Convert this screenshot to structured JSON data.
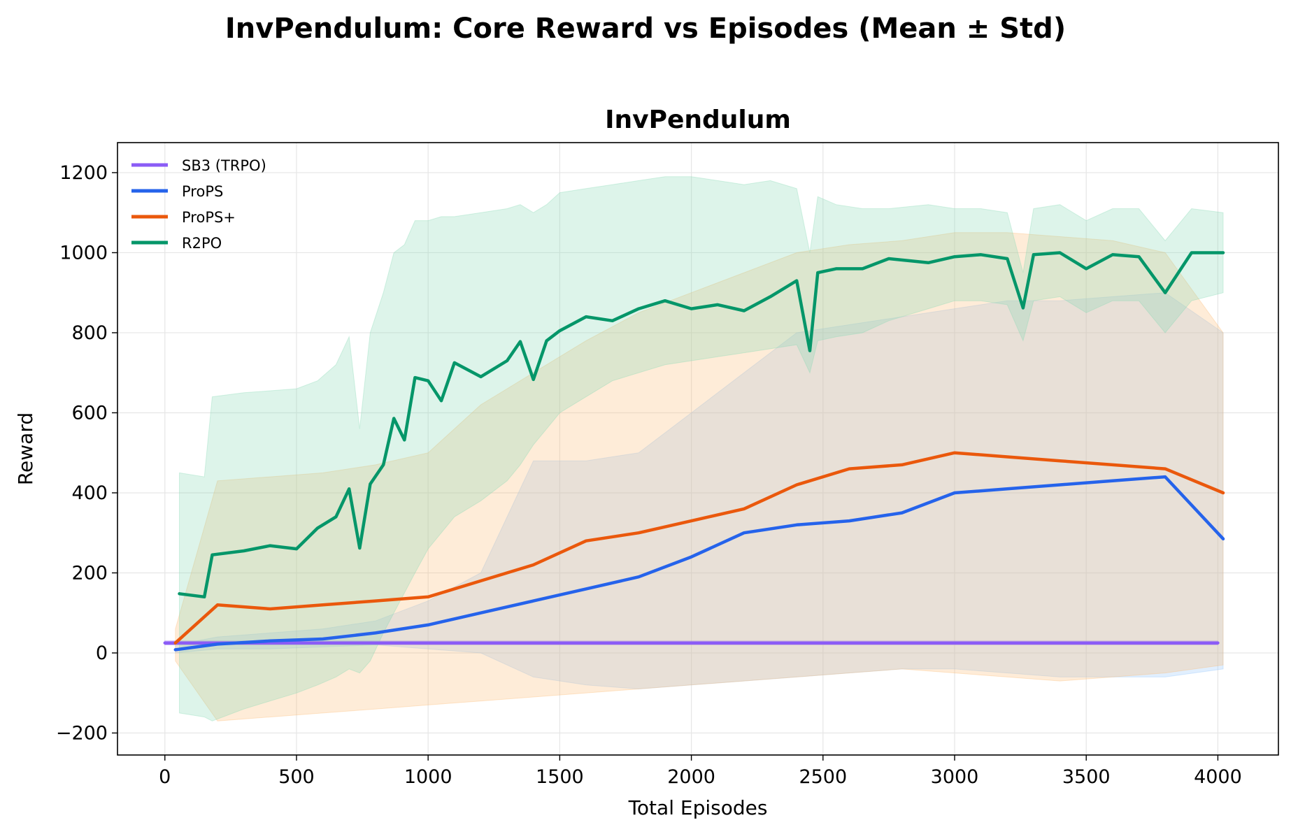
{
  "chart_data": {
    "type": "line",
    "suptitle": "InvPendulum: Core Reward vs Episodes (Mean ± Std)",
    "title": "InvPendulum",
    "xlabel": "Total Episodes",
    "ylabel": "Reward",
    "xlim": [
      -180,
      4230
    ],
    "ylim": [
      -255,
      1275
    ],
    "xticks": [
      0,
      500,
      1000,
      1500,
      2000,
      2500,
      3000,
      3500,
      4000
    ],
    "xtick_labels": [
      "0",
      "500",
      "1000",
      "1500",
      "2000",
      "2500",
      "3000",
      "3500",
      "4000"
    ],
    "yticks": [
      -200,
      0,
      200,
      400,
      600,
      800,
      1000,
      1200
    ],
    "ytick_labels": [
      "−200",
      "0",
      "200",
      "400",
      "600",
      "800",
      "1000",
      "1200"
    ],
    "grid": true,
    "legend_position": "top-left",
    "series": [
      {
        "name": "SB3 (TRPO)",
        "color": "#8b5cf6",
        "band_color": "#8b5cf6",
        "x": [
          0,
          500,
          1000,
          1500,
          2000,
          2500,
          3000,
          3500,
          4000
        ],
        "mean": [
          25,
          25,
          25,
          25,
          25,
          25,
          25,
          25,
          25
        ],
        "lower": [
          20,
          20,
          20,
          20,
          20,
          20,
          20,
          20,
          20
        ],
        "upper": [
          30,
          30,
          30,
          30,
          30,
          30,
          30,
          30,
          30
        ]
      },
      {
        "name": "ProPS",
        "color": "#2563eb",
        "band_color": "#93c5fd",
        "x": [
          40,
          200,
          400,
          600,
          800,
          1000,
          1200,
          1400,
          1600,
          1800,
          2000,
          2200,
          2400,
          2600,
          2800,
          3000,
          3200,
          3400,
          3600,
          3800,
          4020
        ],
        "mean": [
          8,
          22,
          30,
          35,
          50,
          70,
          100,
          130,
          160,
          190,
          240,
          300,
          320,
          330,
          350,
          400,
          410,
          420,
          430,
          440,
          285
        ],
        "lower": [
          0,
          10,
          10,
          15,
          20,
          10,
          0,
          -60,
          -80,
          -90,
          -80,
          -70,
          -60,
          -50,
          -40,
          -40,
          -50,
          -60,
          -60,
          -60,
          -40
        ],
        "upper": [
          20,
          40,
          50,
          60,
          80,
          130,
          200,
          480,
          480,
          500,
          600,
          700,
          800,
          820,
          840,
          860,
          880,
          880,
          890,
          900,
          800
        ]
      },
      {
        "name": "ProPS+",
        "color": "#ea580c",
        "band_color": "#fdba74",
        "x": [
          40,
          200,
          400,
          600,
          800,
          1000,
          1200,
          1400,
          1600,
          1800,
          2000,
          2200,
          2400,
          2600,
          2800,
          3000,
          3200,
          3400,
          3600,
          3800,
          4020
        ],
        "mean": [
          25,
          120,
          110,
          120,
          130,
          140,
          180,
          220,
          280,
          300,
          330,
          360,
          420,
          460,
          470,
          500,
          490,
          480,
          470,
          460,
          400
        ],
        "lower": [
          -20,
          -170,
          -160,
          -150,
          -140,
          -130,
          -120,
          -110,
          -100,
          -90,
          -80,
          -70,
          -60,
          -50,
          -40,
          -50,
          -60,
          -70,
          -60,
          -50,
          -30
        ],
        "upper": [
          60,
          430,
          440,
          450,
          470,
          500,
          620,
          700,
          780,
          850,
          900,
          950,
          1000,
          1020,
          1030,
          1050,
          1050,
          1040,
          1030,
          1000,
          800
        ]
      },
      {
        "name": "R2PO",
        "color": "#059669",
        "band_color": "#86d9b4",
        "x": [
          55,
          150,
          180,
          300,
          400,
          500,
          580,
          650,
          700,
          740,
          780,
          830,
          870,
          910,
          950,
          1000,
          1050,
          1100,
          1200,
          1300,
          1350,
          1400,
          1450,
          1500,
          1600,
          1700,
          1800,
          1900,
          2000,
          2100,
          2200,
          2300,
          2400,
          2450,
          2480,
          2550,
          2650,
          2750,
          2900,
          3000,
          3100,
          3200,
          3260,
          3300,
          3400,
          3500,
          3600,
          3700,
          3800,
          3900,
          4020
        ],
        "mean": [
          148,
          140,
          245,
          255,
          268,
          260,
          312,
          340,
          410,
          262,
          422,
          470,
          586,
          532,
          688,
          680,
          630,
          725,
          690,
          730,
          778,
          683,
          780,
          805,
          840,
          830,
          860,
          880,
          860,
          870,
          855,
          890,
          930,
          755,
          950,
          960,
          960,
          985,
          975,
          990,
          995,
          985,
          862,
          995,
          1000,
          960,
          995,
          990,
          900,
          1000,
          1000
        ],
        "lower": [
          -150,
          -160,
          -170,
          -140,
          -120,
          -100,
          -80,
          -60,
          -40,
          -50,
          -20,
          50,
          100,
          150,
          200,
          260,
          300,
          340,
          380,
          430,
          470,
          520,
          560,
          600,
          640,
          680,
          700,
          720,
          730,
          740,
          750,
          760,
          770,
          700,
          780,
          790,
          800,
          830,
          860,
          880,
          880,
          870,
          780,
          880,
          890,
          850,
          880,
          880,
          800,
          880,
          900
        ],
        "upper": [
          450,
          440,
          640,
          650,
          655,
          660,
          680,
          720,
          790,
          560,
          800,
          900,
          1000,
          1020,
          1080,
          1080,
          1090,
          1090,
          1100,
          1110,
          1120,
          1100,
          1120,
          1150,
          1160,
          1170,
          1180,
          1190,
          1190,
          1180,
          1170,
          1180,
          1160,
          1000,
          1140,
          1120,
          1110,
          1110,
          1120,
          1110,
          1110,
          1100,
          950,
          1110,
          1120,
          1080,
          1110,
          1110,
          1030,
          1110,
          1100
        ]
      }
    ]
  }
}
